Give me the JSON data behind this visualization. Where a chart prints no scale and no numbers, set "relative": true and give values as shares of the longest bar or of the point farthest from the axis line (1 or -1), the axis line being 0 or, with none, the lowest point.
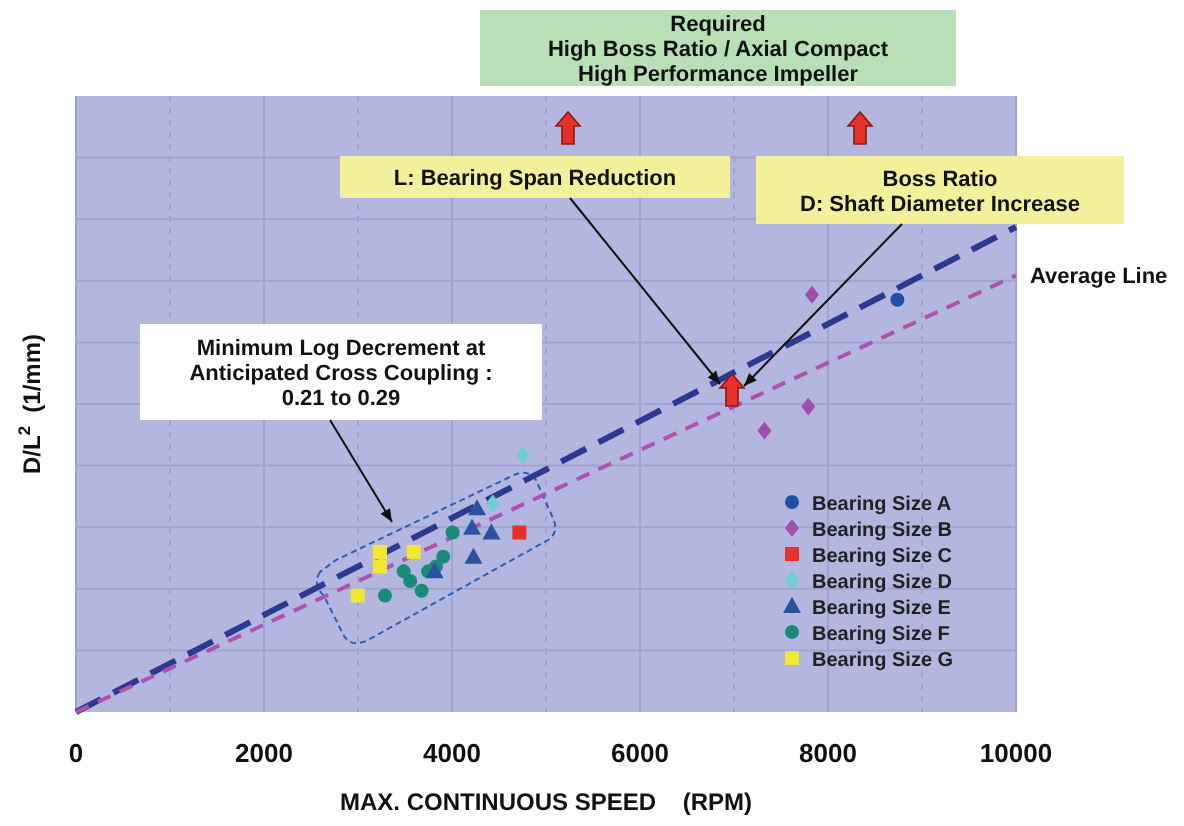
{
  "chart_data": {
    "type": "scatter",
    "xlabel": "MAX. CONTINUOUS SPEED    (RPM)",
    "ylabel": "D/L$^{2}$  (1/mm)",
    "relative": true,
    "xlim": [
      0,
      10000
    ],
    "xticks": [
      0,
      {
        "value": 1000,
        "label": null
      },
      2000,
      {
        "value": 3000,
        "label": null
      },
      4000,
      {
        "value": 5000,
        "label": null
      },
      6000,
      {
        "value": 7000,
        "label": null
      },
      8000,
      {
        "value": 9000,
        "label": null
      },
      10000
    ],
    "tick_labels": "x",
    "grid": true,
    "legend": "bottom right",
    "annotations": [
      "Required\nHigh Boss Ratio / Axial Compact\nHigh Performance  Impeller",
      "L: Bearing Span Reduction",
      "Boss Ratio\nD: Shaft Diameter Increase",
      "Minimum Log Decrement at\nAnticipated Cross Coupling :\n0.21 to 0.29"
    ],
    "series": [
      {
        "type": "line",
        "color": "#2b3990",
        "x": [
          0,
          10000
        ],
        "values": [
          0,
          1
        ],
        "line_style": "dashed",
        "marker": "none"
      },
      {
        "type": "line",
        "name": "Average Line",
        "color": "#b050b0",
        "x": [
          0,
          10000
        ],
        "values": [
          0,
          0.9
        ],
        "line_style": "dashed",
        "marker": "none"
      },
      {
        "name": "Bearing Size A",
        "color": "#1f4fa8",
        "marker": "circle",
        "x": [
          8738
        ],
        "values": [
          0.85
        ]
      },
      {
        "name": "Bearing Size B",
        "color": "#a04fa8",
        "marker": "diamond",
        "x": [
          7829,
          7790,
          7324
        ],
        "values": [
          0.86,
          0.63,
          0.58
        ]
      },
      {
        "name": "Bearing Size C",
        "color": "#e8302a",
        "marker": "square",
        "x": [
          4717
        ],
        "values": [
          0.37
        ]
      },
      {
        "name": "Bearing Size D",
        "color": "#6ccfd0",
        "marker": "diamond",
        "x": [
          4755,
          4434
        ],
        "values": [
          0.53,
          0.43
        ]
      },
      {
        "name": "Bearing Size E",
        "color": "#2a52a0",
        "marker": "triangle",
        "x": [
          4266,
          4213,
          4419,
          4228,
          3815
        ],
        "values": [
          0.42,
          0.38,
          0.37,
          0.32,
          0.29
        ]
      },
      {
        "name": "Bearing Size F",
        "color": "#1a8a7a",
        "marker": "circle",
        "x": [
          4006,
          3907,
          3830,
          3746,
          3486,
          3555,
          3677,
          3287
        ],
        "values": [
          0.37,
          0.32,
          0.3,
          0.29,
          0.29,
          0.27,
          0.25,
          0.24
        ]
      },
      {
        "name": "Bearing Size G",
        "color": "#f0e830",
        "marker": "square",
        "x": [
          3234,
          3234,
          3593,
          2997
        ],
        "values": [
          0.33,
          0.3,
          0.33,
          0.24
        ]
      }
    ]
  }
}
